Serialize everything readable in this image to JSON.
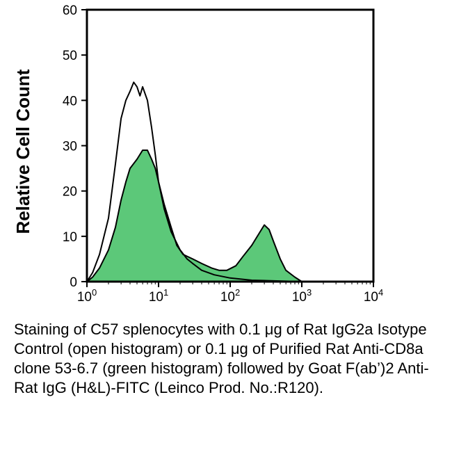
{
  "chart_data": {
    "type": "area",
    "title": "",
    "xlabel": "",
    "ylabel": "Relative Cell Count",
    "xscale": "log",
    "xlim": [
      1,
      10000
    ],
    "ylim": [
      0,
      60
    ],
    "grid": false,
    "legend": "none",
    "x_ticks": [
      {
        "value": 1,
        "base": "10",
        "exp": "0"
      },
      {
        "value": 10,
        "base": "10",
        "exp": "1"
      },
      {
        "value": 100,
        "base": "10",
        "exp": "2"
      },
      {
        "value": 1000,
        "base": "10",
        "exp": "3"
      },
      {
        "value": 10000,
        "base": "10",
        "exp": "4"
      }
    ],
    "y_ticks": [
      0,
      10,
      20,
      30,
      40,
      50,
      60
    ],
    "series": [
      {
        "style": "open",
        "color": "#000000",
        "points": [
          [
            1.0,
            0
          ],
          [
            1.2,
            2
          ],
          [
            1.5,
            6
          ],
          [
            2.0,
            14
          ],
          [
            2.5,
            26
          ],
          [
            3.0,
            36
          ],
          [
            3.5,
            40
          ],
          [
            4.0,
            42
          ],
          [
            4.5,
            44
          ],
          [
            5.0,
            43
          ],
          [
            5.5,
            41
          ],
          [
            6.0,
            43
          ],
          [
            7.0,
            40
          ],
          [
            8.0,
            34
          ],
          [
            9.0,
            28
          ],
          [
            10,
            22
          ],
          [
            12,
            16
          ],
          [
            15,
            11
          ],
          [
            20,
            7
          ],
          [
            25,
            5
          ],
          [
            30,
            4
          ],
          [
            40,
            2.5
          ],
          [
            60,
            1.5
          ],
          [
            100,
            0.8
          ],
          [
            200,
            0.3
          ],
          [
            1000,
            0
          ]
        ]
      },
      {
        "style": "filled",
        "color": "#5cc879",
        "stroke": "#000000",
        "points": [
          [
            1.0,
            0
          ],
          [
            1.2,
            1
          ],
          [
            1.5,
            3
          ],
          [
            2.0,
            7
          ],
          [
            2.5,
            12
          ],
          [
            3.0,
            18
          ],
          [
            3.5,
            22
          ],
          [
            4.0,
            25
          ],
          [
            5.0,
            27
          ],
          [
            6.0,
            29
          ],
          [
            7.0,
            29
          ],
          [
            8.0,
            27
          ],
          [
            9.0,
            25
          ],
          [
            10,
            22
          ],
          [
            12,
            17
          ],
          [
            15,
            12
          ],
          [
            18,
            8
          ],
          [
            22,
            6
          ],
          [
            30,
            5
          ],
          [
            40,
            4
          ],
          [
            55,
            3
          ],
          [
            70,
            2.5
          ],
          [
            90,
            2.5
          ],
          [
            120,
            3.5
          ],
          [
            150,
            5.5
          ],
          [
            200,
            8
          ],
          [
            250,
            10.5
          ],
          [
            300,
            12.5
          ],
          [
            350,
            11.5
          ],
          [
            400,
            9
          ],
          [
            500,
            5
          ],
          [
            600,
            2.5
          ],
          [
            800,
            1
          ],
          [
            1000,
            0
          ]
        ]
      }
    ]
  },
  "caption": "Staining of C57 splenocytes with 0.1 μg of Rat IgG2a Isotype Control (open histogram) or 0.1 μg of Purified Rat Anti-CD8a clone 53-6.7 (green histogram) followed by Goat F(ab’)2 Anti-Rat IgG (H&L)-FITC (Leinco Prod. No.:R120)."
}
